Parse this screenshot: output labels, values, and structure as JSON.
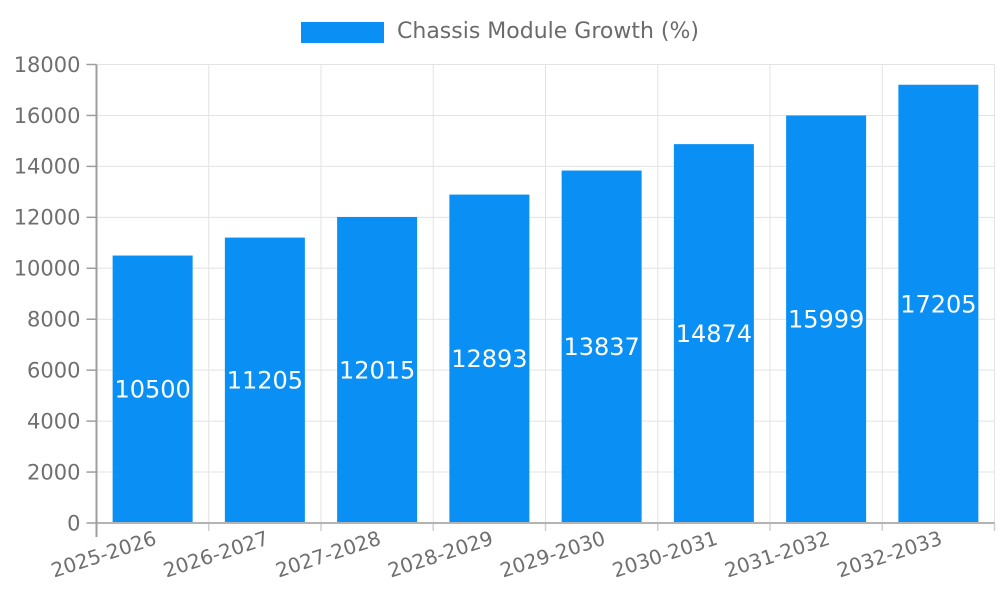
{
  "chart_data": {
    "type": "bar",
    "title": "Chassis Module Growth (%)",
    "legend_position": "top-center",
    "categories": [
      "2025-2026",
      "2026-2027",
      "2027-2028",
      "2028-2029",
      "2029-2030",
      "2030-2031",
      "2031-2032",
      "2032-2033"
    ],
    "values": [
      10500,
      11205,
      12015,
      12893,
      13837,
      14874,
      15999,
      17205
    ],
    "xlabel": "",
    "ylabel": "",
    "ylim": [
      0,
      18000
    ],
    "ytick_step": 2000,
    "yticks": [
      0,
      2000,
      4000,
      6000,
      8000,
      10000,
      12000,
      14000,
      16000,
      18000
    ],
    "grid": true,
    "bar_labels_inside": true,
    "x_label_rotation_deg": -18,
    "colors": {
      "bar": "#0a90f5",
      "bar_label": "#ffffff",
      "grid": "#e3e3e3",
      "axis": "#9e9e9e",
      "x_axis": "#b3b3b3",
      "minor_tick": "#cfcfcf",
      "tick_text": "#6f6f6f",
      "title_text": "#6b6b6b"
    }
  }
}
